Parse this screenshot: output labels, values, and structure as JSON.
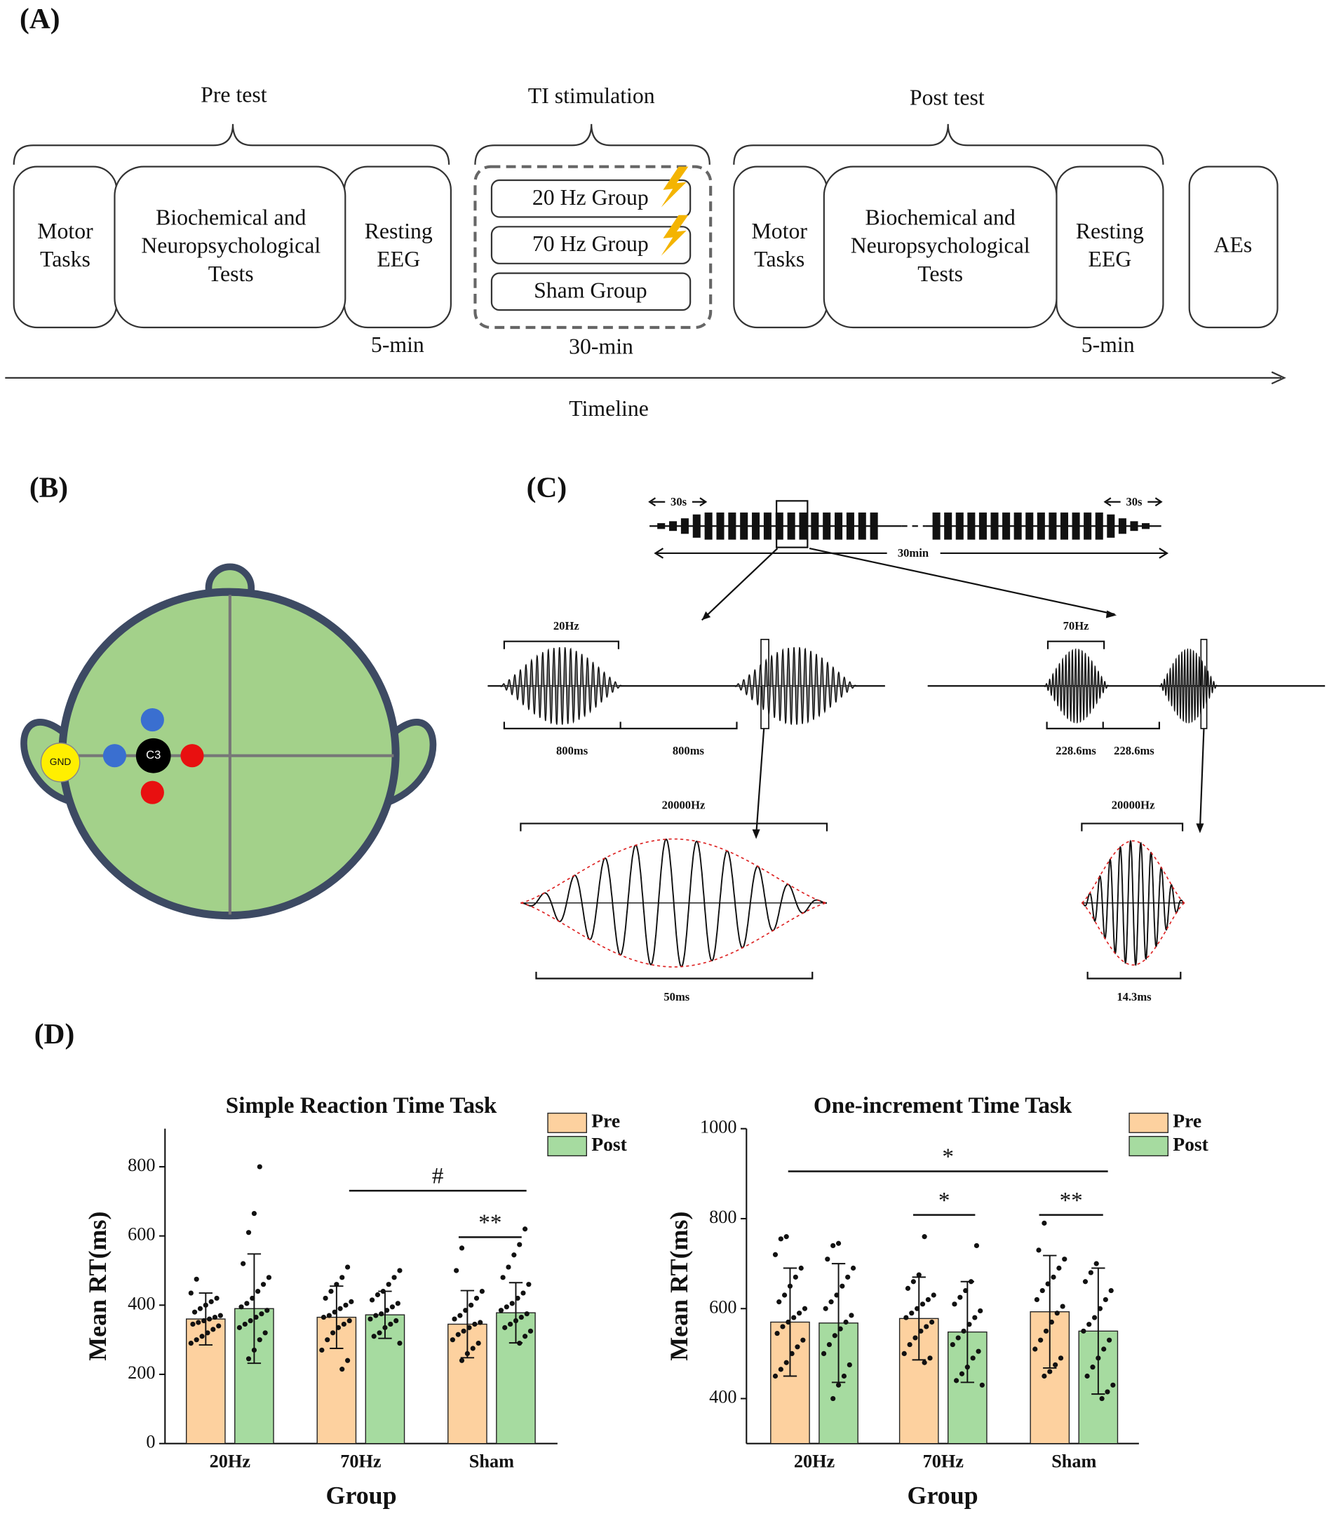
{
  "panel_a": {
    "label": "(A)",
    "pre": {
      "title": "Pre test",
      "boxes": [
        [
          "Motor",
          "Tasks"
        ],
        [
          "Biochemical and",
          "Neuropsychological",
          "Tests"
        ],
        [
          "Resting",
          "EEG"
        ]
      ],
      "duration": "5-min"
    },
    "stim": {
      "title": "TI stimulation",
      "groups": [
        "20 Hz Group",
        "70 Hz Group",
        "Sham Group"
      ],
      "duration": "30-min"
    },
    "post": {
      "title": "Post test",
      "boxes": [
        [
          "Motor",
          "Tasks"
        ],
        [
          "Biochemical and",
          "Neuropsychological",
          "Tests"
        ],
        [
          "Resting",
          "EEG"
        ]
      ],
      "duration": "5-min"
    },
    "ae": "AEs",
    "timeline": "Timeline"
  },
  "panel_b": {
    "label": "(B)",
    "electrodes": [
      "GND",
      "C3"
    ]
  },
  "panel_c": {
    "label": "(C)",
    "ramp_left": "30s",
    "ramp_right": "30s",
    "total": "30min",
    "freq_a": "20Hz",
    "on_a": "800ms",
    "off_a": "800ms",
    "freq_b": "70Hz",
    "on_b": "228.6ms",
    "off_b": "228.6ms",
    "carrier_a": "20000Hz",
    "period_a": "50ms",
    "carrier_b": "20000Hz",
    "period_b": "14.3ms"
  },
  "panel_d": {
    "label": "(D)"
  },
  "chart_data": [
    {
      "type": "bar",
      "title": "Simple Reaction Time Task",
      "xlabel": "Group",
      "ylabel": "Mean RT(ms)",
      "categories": [
        "20Hz",
        "70Hz",
        "Sham"
      ],
      "ylim": [
        0,
        910
      ],
      "yticks": [
        0,
        200,
        400,
        600,
        800
      ],
      "series": [
        {
          "name": "Pre",
          "color": "#fdd19f",
          "values": [
            360,
            365,
            345
          ],
          "errors": [
            75,
            90,
            97
          ],
          "points": [
            [
              290,
              300,
              310,
              320,
              330,
              340,
              345,
              350,
              355,
              360,
              365,
              370,
              380,
              390,
              400,
              410,
              420,
              435,
              475
            ],
            [
              215,
              240,
              270,
              300,
              320,
              335,
              345,
              355,
              365,
              370,
              380,
              390,
              400,
              410,
              420,
              440,
              460,
              480,
              510
            ],
            [
              240,
              260,
              275,
              290,
              300,
              315,
              325,
              335,
              345,
              350,
              360,
              370,
              385,
              400,
              420,
              440,
              500,
              565
            ]
          ]
        },
        {
          "name": "Post",
          "color": "#a6dba0",
          "values": [
            390,
            372,
            378
          ],
          "errors": [
            158,
            68,
            87
          ],
          "points": [
            [
              245,
              270,
              300,
              320,
              335,
              345,
              355,
              365,
              375,
              385,
              395,
              405,
              420,
              440,
              460,
              480,
              520,
              610,
              665,
              800
            ],
            [
              290,
              310,
              320,
              335,
              345,
              355,
              360,
              370,
              375,
              385,
              395,
              405,
              415,
              430,
              440,
              460,
              480,
              500
            ],
            [
              290,
              310,
              325,
              335,
              345,
              355,
              365,
              375,
              385,
              395,
              405,
              420,
              435,
              460,
              480,
              510,
              545,
              575,
              620
            ]
          ]
        }
      ],
      "annotations": [
        "#",
        "**"
      ]
    },
    {
      "type": "bar",
      "title": "One-increment Time Task",
      "xlabel": "Group",
      "ylabel": "Mean RT(ms)",
      "categories": [
        "20Hz",
        "70Hz",
        "Sham"
      ],
      "ylim": [
        300,
        1000
      ],
      "yticks": [
        400,
        600,
        800,
        1000
      ],
      "series": [
        {
          "name": "Pre",
          "color": "#fdd19f",
          "values": [
            570,
            578,
            593
          ],
          "errors": [
            120,
            92,
            125
          ],
          "points": [
            [
              450,
              465,
              480,
              500,
              515,
              530,
              545,
              560,
              570,
              580,
              590,
              600,
              615,
              630,
              650,
              670,
              690,
              720,
              755,
              760
            ],
            [
              480,
              490,
              500,
              520,
              535,
              550,
              560,
              570,
              580,
              590,
              600,
              610,
              620,
              630,
              645,
              660,
              675,
              760
            ],
            [
              450,
              460,
              475,
              490,
              510,
              530,
              550,
              570,
              590,
              605,
              620,
              640,
              655,
              670,
              690,
              710,
              730,
              790
            ]
          ]
        },
        {
          "name": "Post",
          "color": "#a6dba0",
          "values": [
            568,
            548,
            550
          ],
          "errors": [
            132,
            112,
            140
          ],
          "points": [
            [
              400,
              430,
              450,
              475,
              500,
              520,
              540,
              555,
              570,
              585,
              600,
              615,
              630,
              650,
              670,
              690,
              710,
              740,
              745
            ],
            [
              430,
              440,
              455,
              470,
              490,
              505,
              520,
              535,
              550,
              565,
              580,
              595,
              610,
              625,
              640,
              660,
              740
            ],
            [
              400,
              415,
              430,
              450,
              470,
              490,
              510,
              530,
              550,
              565,
              580,
              600,
              620,
              640,
              660,
              680,
              700
            ]
          ]
        }
      ],
      "annotations": [
        "*",
        "*",
        "**"
      ]
    }
  ]
}
